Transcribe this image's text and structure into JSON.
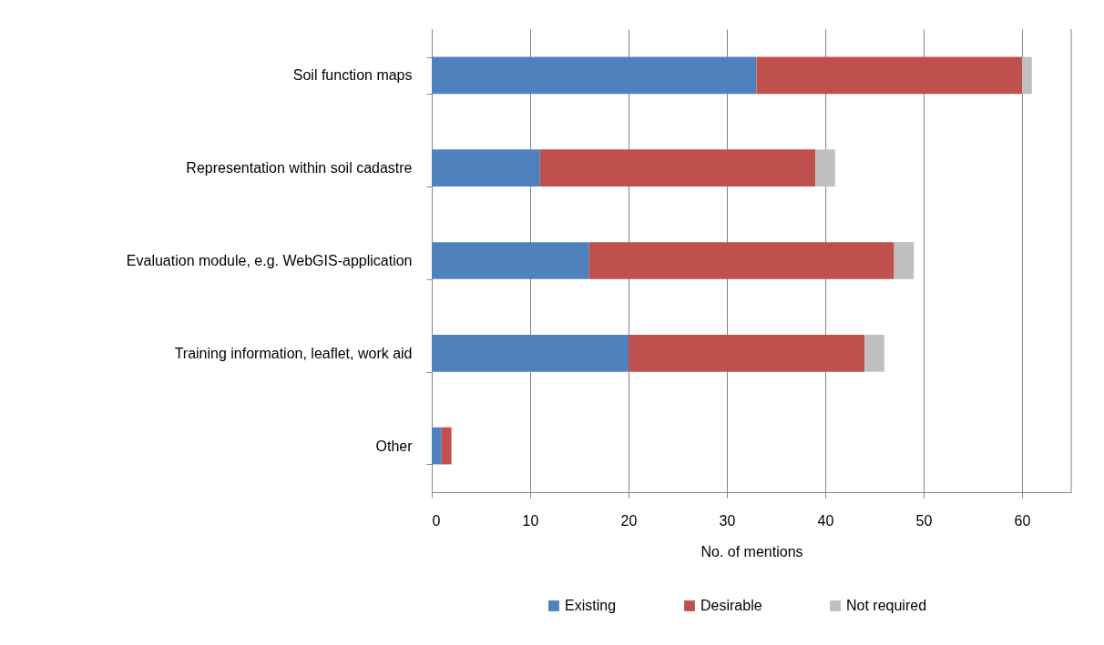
{
  "chart_data": {
    "type": "bar",
    "orientation": "horizontal",
    "stacked": true,
    "categories": [
      "Soil function maps",
      "Representation within soil cadastre ",
      "Evaluation module, e.g. WebGIS-application",
      "Training information, leaflet, work aid",
      "Other"
    ],
    "series": [
      {
        "name": "Existing",
        "color": "#4f81bd",
        "values": [
          33,
          11,
          16,
          20,
          1
        ]
      },
      {
        "name": "Desirable",
        "color": "#c0504d",
        "values": [
          27,
          28,
          31,
          24,
          1
        ]
      },
      {
        "name": "Not required",
        "color": "#bfbfbf",
        "values": [
          1,
          2,
          2,
          2,
          0
        ]
      }
    ],
    "xlabel": "No. of mentions",
    "xlim": [
      0,
      65
    ],
    "xticks": [
      0,
      10,
      20,
      30,
      40,
      50,
      60
    ],
    "grid": "x",
    "legend": "bottom"
  }
}
